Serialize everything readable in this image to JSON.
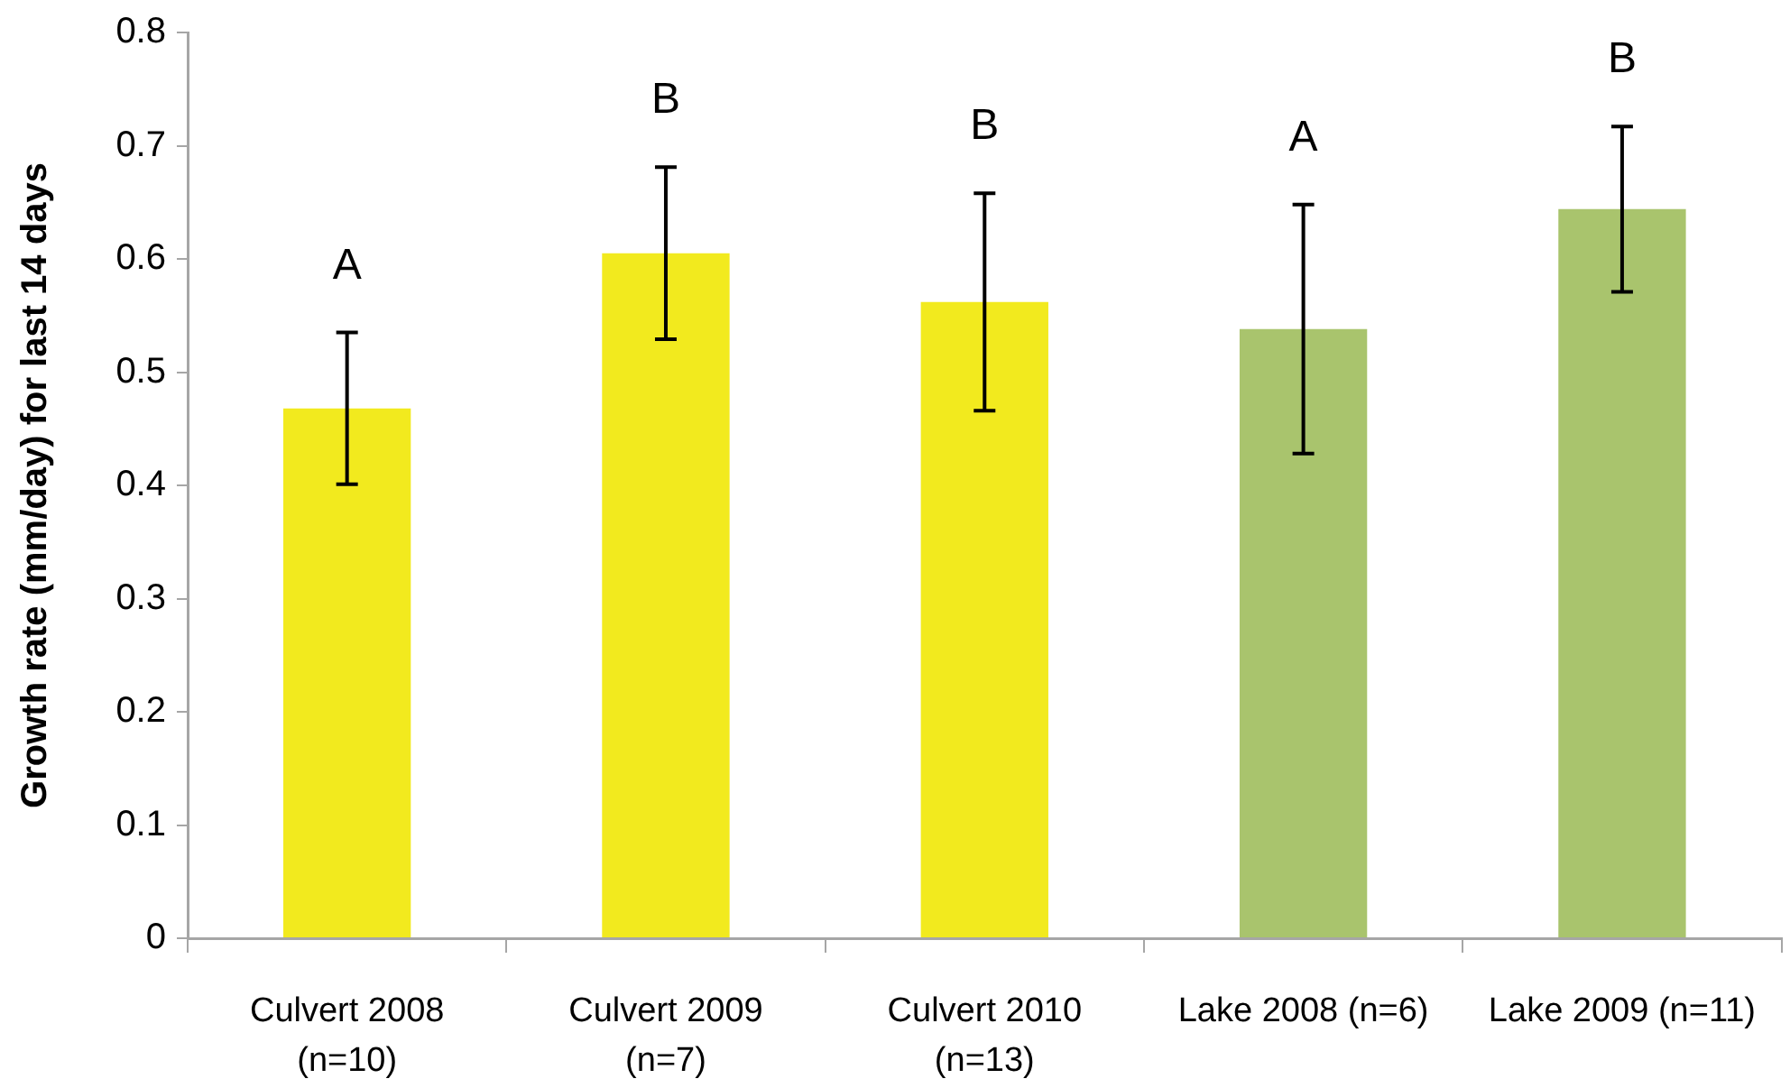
{
  "chart_data": {
    "type": "bar",
    "ylabel": "Growth rate (mm/day) for last 14 days",
    "categories": [
      "Culvert 2008 (n=10)",
      "Culvert 2009 (n=7)",
      "Culvert 2010 (n=13)",
      "Lake 2008 (n=6)",
      "Lake 2009 (n=11)"
    ],
    "values": [
      0.468,
      0.605,
      0.562,
      0.538,
      0.644
    ],
    "errors": [
      0.067,
      0.076,
      0.096,
      0.11,
      0.073
    ],
    "colors": [
      "#f2ea1e",
      "#f2ea1e",
      "#f2ea1e",
      "#a9c46d",
      "#a9c46d"
    ],
    "ylim": [
      0,
      0.8
    ],
    "yticks": [
      0,
      0.1,
      0.2,
      0.3,
      0.4,
      0.5,
      0.6,
      0.7,
      0.8
    ],
    "annotations": [
      "A",
      "B",
      "B",
      "A",
      "B"
    ]
  }
}
